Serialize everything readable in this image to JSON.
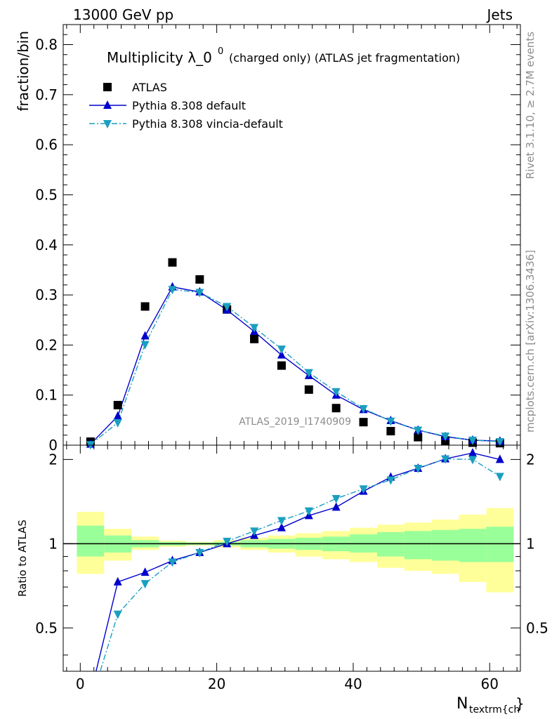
{
  "header": {
    "energy_label": "13000 GeV pp",
    "process_label": "Jets",
    "rivet_label": "Rivet 3.1.10, ≥ 2.7M events",
    "mcplots_label": "mcplots.cern.ch [arXiv:1306.3436]",
    "analysis_label": "ATLAS_2019_I1740909"
  },
  "chart_data": [
    {
      "type": "scatter",
      "title": "Multiplicity λ_0",
      "title_superscript": "0",
      "title_suffix": "(charged only) (ATLAS jet fragmentation)",
      "xlabel": "N",
      "xlabel_sub": "textrm{ch",
      "xlabel_end": "}",
      "ylabel": "fraction/bin",
      "xlim": [
        -2.5,
        64.5
      ],
      "ylim": [
        0,
        0.84
      ],
      "yticks": [
        "0",
        "0.1",
        "0.2",
        "0.3",
        "0.4",
        "0.5",
        "0.6",
        "0.7",
        "0.8"
      ],
      "ytick_values": [
        0,
        0.1,
        0.2,
        0.3,
        0.4,
        0.5,
        0.6,
        0.7,
        0.8
      ],
      "legend_position": "top-left",
      "x": [
        1.5,
        5.5,
        9.5,
        13.5,
        17.5,
        21.5,
        25.5,
        29.5,
        33.5,
        37.5,
        41.5,
        45.5,
        49.5,
        53.5,
        57.5,
        61.5
      ],
      "series": [
        {
          "name": "ATLAS",
          "color": "#000000",
          "marker": "square",
          "values": [
            0.007,
            0.08,
            0.277,
            0.365,
            0.331,
            0.271,
            0.212,
            0.159,
            0.111,
            0.074,
            0.046,
            0.028,
            0.016,
            0.009,
            0.005,
            0.004
          ]
        },
        {
          "name": "Pythia 8.308 default",
          "color": "#0000cc",
          "marker": "triangle-up",
          "line": "solid",
          "values": [
            0.002,
            0.058,
            0.218,
            0.316,
            0.306,
            0.27,
            0.227,
            0.18,
            0.139,
            0.1,
            0.071,
            0.049,
            0.03,
            0.017,
            0.01,
            0.008
          ]
        },
        {
          "name": "Pythia 8.308 vincia-default",
          "color": "#1a9fc0",
          "marker": "triangle-down",
          "line": "dashdot",
          "values": [
            0.001,
            0.045,
            0.201,
            0.311,
            0.305,
            0.277,
            0.235,
            0.192,
            0.145,
            0.107,
            0.073,
            0.048,
            0.03,
            0.018,
            0.01,
            0.007
          ]
        }
      ]
    },
    {
      "type": "line",
      "ylabel": "Ratio to ATLAS",
      "xlim": [
        -2.5,
        64.5
      ],
      "ylim": [
        0.35,
        2.25
      ],
      "yticks": [
        "0.5",
        "1",
        "2"
      ],
      "ytick_values": [
        0.5,
        1,
        2
      ],
      "xticks": [
        "0",
        "20",
        "40",
        "60"
      ],
      "xtick_values": [
        0,
        20,
        40,
        60
      ],
      "bin_edges": [
        -0.5,
        3.5,
        7.5,
        11.5,
        15.5,
        19.5,
        23.5,
        27.5,
        31.5,
        35.5,
        39.5,
        43.5,
        47.5,
        51.5,
        55.5,
        59.5,
        63.5
      ],
      "uncertainty_bands": {
        "inner_color": "#99ff99",
        "outer_color": "#ffff99",
        "inner_low": [
          0.9,
          0.93,
          0.97,
          0.985,
          0.99,
          0.985,
          0.97,
          0.96,
          0.95,
          0.94,
          0.93,
          0.9,
          0.88,
          0.87,
          0.86,
          0.86
        ],
        "inner_high": [
          1.16,
          1.07,
          1.03,
          1.015,
          1.01,
          1.015,
          1.03,
          1.04,
          1.05,
          1.06,
          1.08,
          1.1,
          1.11,
          1.12,
          1.13,
          1.15
        ],
        "outer_low": [
          0.78,
          0.87,
          0.95,
          0.975,
          0.985,
          0.97,
          0.95,
          0.93,
          0.9,
          0.88,
          0.86,
          0.82,
          0.8,
          0.78,
          0.73,
          0.67
        ],
        "outer_high": [
          1.3,
          1.13,
          1.06,
          1.025,
          1.015,
          1.03,
          1.05,
          1.07,
          1.09,
          1.11,
          1.14,
          1.17,
          1.19,
          1.22,
          1.27,
          1.34
        ]
      },
      "x": [
        1.5,
        5.5,
        9.5,
        13.5,
        17.5,
        21.5,
        25.5,
        29.5,
        33.5,
        37.5,
        41.5,
        45.5,
        49.5,
        53.5,
        57.5,
        61.5
      ],
      "series": [
        {
          "name": "Pythia 8.308 default",
          "color": "#0000cc",
          "marker": "triangle-up",
          "line": "solid",
          "values": [
            0.29,
            0.73,
            0.79,
            0.87,
            0.93,
            1.0,
            1.07,
            1.14,
            1.26,
            1.35,
            1.54,
            1.73,
            1.86,
            2.01,
            2.11,
            2.0
          ]
        },
        {
          "name": "Pythia 8.308 vincia-default",
          "color": "#1a9fc0",
          "marker": "triangle-down",
          "line": "dashdot",
          "values": [
            0.27,
            0.56,
            0.72,
            0.86,
            0.93,
            1.02,
            1.11,
            1.21,
            1.31,
            1.45,
            1.57,
            1.69,
            1.86,
            2.01,
            2.0,
            1.74
          ]
        }
      ]
    }
  ]
}
